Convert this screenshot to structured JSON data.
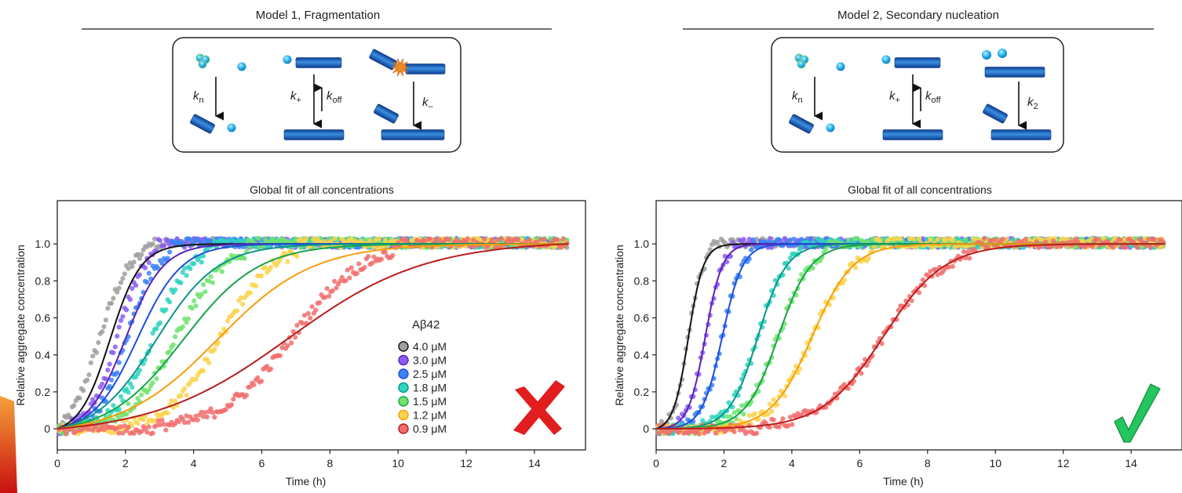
{
  "panels": [
    {
      "model_title": "Model 1, Fragmentation",
      "scheme": {
        "rate_labels": {
          "kn": "n",
          "kplus": "+",
          "koff": "off",
          "kthird": "–"
        }
      },
      "outcome": "cross"
    },
    {
      "model_title": "Model 2, Secondary nucleation",
      "scheme": {
        "rate_labels": {
          "kn": "n",
          "kplus": "+",
          "koff": "off",
          "kthird": "2"
        }
      },
      "outcome": "check"
    }
  ],
  "colors": {
    "fit_lines": [
      "#111111",
      "#5b21b6",
      "#1d4ed8",
      "#0d9488",
      "#16a34a",
      "#f59e0b",
      "#b91c1c"
    ],
    "dots": [
      "#9e9e9e",
      "#8b5cf6",
      "#3b82f6",
      "#2dd4bf",
      "#6ee36e",
      "#fcd34d",
      "#f26d6d"
    ],
    "cross": "#e11d1d",
    "check": "#22c55e",
    "fibril": "#1565c0",
    "monomer": "#29b6f6"
  },
  "chart_data": [
    {
      "type": "scatter",
      "title": "Global fit of all concentrations",
      "xlabel": "Time (h)",
      "ylabel": "Relative aggregate concentration",
      "xlim": [
        0,
        15.5
      ],
      "ylim": [
        -0.08,
        1.2
      ],
      "xticks": [
        "0",
        "2",
        "4",
        "6",
        "8",
        "10",
        "12",
        "14"
      ],
      "yticks": [
        "0",
        "0.2",
        "0.4",
        "0.6",
        "0.8",
        "1.0"
      ],
      "legend": {
        "title": "Aβ42",
        "placement": "center-right",
        "entries": [
          "4.0 μM",
          "3.0 μM",
          "2.5 μM",
          "1.8 μM",
          "1.5 μM",
          "1.2 μM",
          "0.9 μM"
        ]
      },
      "series": [
        {
          "name": "4.0 μM",
          "data_t_half": 1.2,
          "data_width": 0.45,
          "fit_t_half": 1.55,
          "fit_width": 0.45
        },
        {
          "name": "3.0 μM",
          "data_t_half": 1.75,
          "data_width": 0.4,
          "fit_t_half": 2.0,
          "fit_width": 0.55
        },
        {
          "name": "2.5 μM",
          "data_t_half": 2.05,
          "data_width": 0.42,
          "fit_t_half": 2.35,
          "fit_width": 0.65
        },
        {
          "name": "1.8 μM",
          "data_t_half": 2.8,
          "data_width": 0.55,
          "fit_t_half": 2.9,
          "fit_width": 0.9
        },
        {
          "name": "1.5 μM",
          "data_t_half": 3.5,
          "data_width": 0.7,
          "fit_t_half": 3.7,
          "fit_width": 1.1
        },
        {
          "name": "1.2 μM",
          "data_t_half": 4.8,
          "data_width": 0.75,
          "fit_t_half": 4.7,
          "fit_width": 1.4
        },
        {
          "name": "0.9 μM",
          "data_t_half": 6.9,
          "data_width": 1.0,
          "fit_t_half": 6.8,
          "fit_width": 2.0
        }
      ]
    },
    {
      "type": "scatter",
      "title": "Global fit of all concentrations",
      "xlabel": "Time (h)",
      "ylabel": "Relative aggregate concentration",
      "xlim": [
        0,
        15.5
      ],
      "ylim": [
        -0.08,
        1.2
      ],
      "xticks": [
        "0",
        "2",
        "4",
        "6",
        "8",
        "10",
        "12",
        "14"
      ],
      "yticks": [
        "0",
        "0.2",
        "0.4",
        "0.6",
        "0.8",
        "1.0"
      ],
      "series": [
        {
          "name": "4.0 μM",
          "data_t_half": 0.95,
          "data_width": 0.22,
          "fit_t_half": 0.95,
          "fit_width": 0.22
        },
        {
          "name": "3.0 μM",
          "data_t_half": 1.45,
          "data_width": 0.25,
          "fit_t_half": 1.45,
          "fit_width": 0.25
        },
        {
          "name": "2.5 μM",
          "data_t_half": 1.95,
          "data_width": 0.3,
          "fit_t_half": 1.95,
          "fit_width": 0.3
        },
        {
          "name": "1.8 μM",
          "data_t_half": 3.0,
          "data_width": 0.42,
          "fit_t_half": 3.0,
          "fit_width": 0.42
        },
        {
          "name": "1.5 μM",
          "data_t_half": 3.6,
          "data_width": 0.48,
          "fit_t_half": 3.6,
          "fit_width": 0.48
        },
        {
          "name": "1.2 μM",
          "data_t_half": 4.6,
          "data_width": 0.6,
          "fit_t_half": 4.6,
          "fit_width": 0.6
        },
        {
          "name": "0.9 μM",
          "data_t_half": 6.7,
          "data_width": 0.9,
          "fit_t_half": 6.7,
          "fit_width": 0.9
        }
      ]
    }
  ]
}
